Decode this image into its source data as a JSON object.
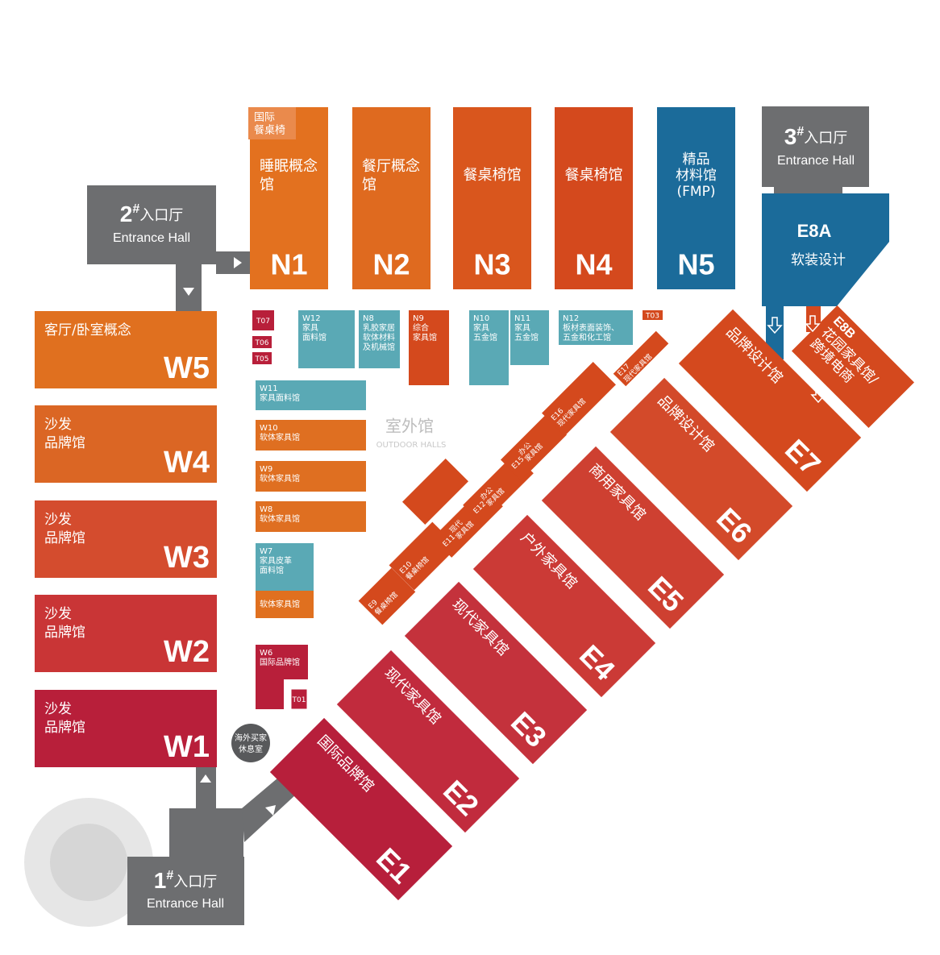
{
  "entrances": [
    {
      "number": "2",
      "mark": "#",
      "name": "入口厅",
      "english": "Entrance Hall"
    },
    {
      "number": "3",
      "mark": "#",
      "name": "入口厅",
      "english": "Entrance Hall"
    },
    {
      "number": "1",
      "mark": "#",
      "name": "入口厅",
      "english": "Entrance Hall"
    }
  ],
  "north_halls": [
    {
      "code": "N1",
      "name": [
        "睡眠概念",
        "馆"
      ],
      "tag": [
        "国际",
        "餐桌椅"
      ],
      "color": "#e3711f"
    },
    {
      "code": "N2",
      "name": [
        "餐厅概念",
        "馆"
      ],
      "color": "#df6a1f"
    },
    {
      "code": "N3",
      "name": [
        "餐桌椅馆"
      ],
      "color": "#d9561d"
    },
    {
      "code": "N4",
      "name": [
        "餐桌椅馆"
      ],
      "color": "#d4491d"
    },
    {
      "code": "N5",
      "name": [
        "精品",
        "材料馆",
        "(FMP)"
      ],
      "color": "#1b6b9a"
    }
  ],
  "e8a": {
    "code": "E8A",
    "name": "软装设计",
    "color": "#1b6b9a"
  },
  "west_halls": [
    {
      "code": "W5",
      "name": [
        "客厅/卧室概念"
      ],
      "color": "#e0701f"
    },
    {
      "code": "W4",
      "name": [
        "沙发",
        "品牌馆"
      ],
      "color": "#db6624"
    },
    {
      "code": "W3",
      "name": [
        "沙发",
        "品牌馆"
      ],
      "color": "#d44c2e"
    },
    {
      "code": "W2",
      "name": [
        "沙发",
        "品牌馆"
      ],
      "color": "#c93536"
    },
    {
      "code": "W1",
      "name": [
        "沙发",
        "品牌馆"
      ],
      "color": "#b81f3a"
    }
  ],
  "small_halls": [
    {
      "code": "T07",
      "color": "#b81f3a"
    },
    {
      "code": "T06",
      "color": "#b81f3a"
    },
    {
      "code": "T05",
      "color": "#b81f3a"
    },
    {
      "code": "W12",
      "name": [
        "家具",
        "面料馆"
      ],
      "color": "#5aa9b5"
    },
    {
      "code": "N8",
      "name": [
        "乳胶家居",
        "软体材料",
        "及机械馆"
      ],
      "color": "#5aa9b5"
    },
    {
      "code": "N9",
      "name": [
        "综合",
        "家具馆"
      ],
      "color": "#d4491d"
    },
    {
      "code": "N10",
      "name": [
        "家具",
        "五金馆"
      ],
      "color": "#5aa9b5"
    },
    {
      "code": "N11",
      "name": [
        "家具",
        "五金馆"
      ],
      "color": "#5aa9b5"
    },
    {
      "code": "N12",
      "name": [
        "板材表面装饰、",
        "五金和化工馆"
      ],
      "color": "#5aa9b5"
    },
    {
      "code": "T03",
      "color": "#d4491d"
    },
    {
      "code": "W11",
      "name": [
        "家具面料馆"
      ],
      "color": "#5aa9b5"
    },
    {
      "code": "W10",
      "name": [
        "软体家具馆"
      ],
      "color": "#df6f21"
    },
    {
      "code": "W9",
      "name": [
        "软体家具馆"
      ],
      "color": "#df6f21"
    },
    {
      "code": "W8",
      "name": [
        "软体家具馆"
      ],
      "color": "#df6f21"
    },
    {
      "code": "W7",
      "name": [
        "家具皮革",
        "面料馆"
      ],
      "color": "#5aa9b5"
    },
    {
      "name": [
        "软体家具馆"
      ],
      "color": "#e0701f"
    },
    {
      "code": "W6",
      "name": [
        "国际品牌馆"
      ],
      "color": "#b81f3a"
    },
    {
      "code": "T01",
      "color": "#b81f3a"
    }
  ],
  "outdoor": {
    "name": "室外馆",
    "english": "OUTDOOR HALLS"
  },
  "lounge": [
    "海外买家",
    "休息室"
  ],
  "east_halls": [
    {
      "code": "E1",
      "name": [
        "国际品牌馆"
      ],
      "color": "#b71f3b"
    },
    {
      "code": "E2",
      "name": [
        "现代家具馆"
      ],
      "color": "#c12b3d"
    },
    {
      "code": "E3",
      "name": [
        "现代家具馆"
      ],
      "color": "#c4323c"
    },
    {
      "code": "E4",
      "name": [
        "户外家具馆"
      ],
      "color": "#cb3a36"
    },
    {
      "code": "E5",
      "name": [
        "商用家具馆"
      ],
      "color": "#ce4031"
    },
    {
      "code": "E6",
      "name": [
        "品牌设计馆"
      ],
      "color": "#d34a2a"
    },
    {
      "code": "E7",
      "name": [
        "品牌设计馆"
      ],
      "color": "#d4491e"
    },
    {
      "code": "E8B",
      "name": [
        "花园家具馆/",
        "跨境电商"
      ],
      "color": "#d4491e"
    }
  ],
  "east_small": [
    {
      "code": "E9",
      "name": [
        "餐桌椅馆"
      ],
      "color": "#d4491d"
    },
    {
      "code": "E10",
      "name": [
        "餐桌椅馆"
      ],
      "color": "#d4491d"
    },
    {
      "code": "E11",
      "name": [
        "现代",
        "家具馆"
      ],
      "color": "#d4491d"
    },
    {
      "code": "E12",
      "name": [
        "办公",
        "家具馆"
      ],
      "color": "#d4491d"
    },
    {
      "code": "E15",
      "name": [
        "办公",
        "家具馆"
      ],
      "color": "#d4491d"
    },
    {
      "code": "E16",
      "name": [
        "现代家具馆"
      ],
      "color": "#d4491d"
    },
    {
      "code": "E17",
      "name": [
        "现代家具馆"
      ],
      "color": "#d4491d"
    }
  ]
}
